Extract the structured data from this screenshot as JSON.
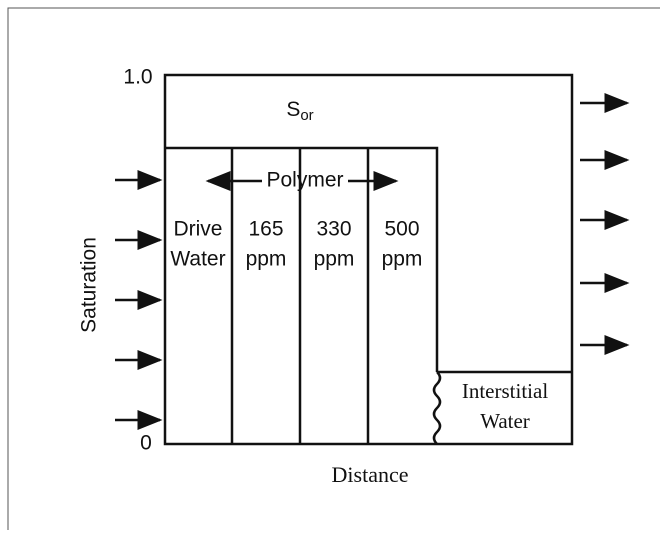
{
  "axis": {
    "y_label": "Saturation",
    "x_label": "Distance",
    "y_top": "1.0",
    "y_bottom": "0"
  },
  "regions": {
    "residual_oil": {
      "symbol": "S",
      "subscript": "or"
    },
    "polymer": "Polymer",
    "banks": [
      {
        "lines": [
          "Drive",
          "Water"
        ]
      },
      {
        "lines": [
          "165",
          "ppm"
        ]
      },
      {
        "lines": [
          "330",
          "ppm"
        ]
      },
      {
        "lines": [
          "500",
          "ppm"
        ]
      }
    ],
    "interstitial": {
      "lines": [
        "Interstitial",
        "Water"
      ]
    }
  }
}
